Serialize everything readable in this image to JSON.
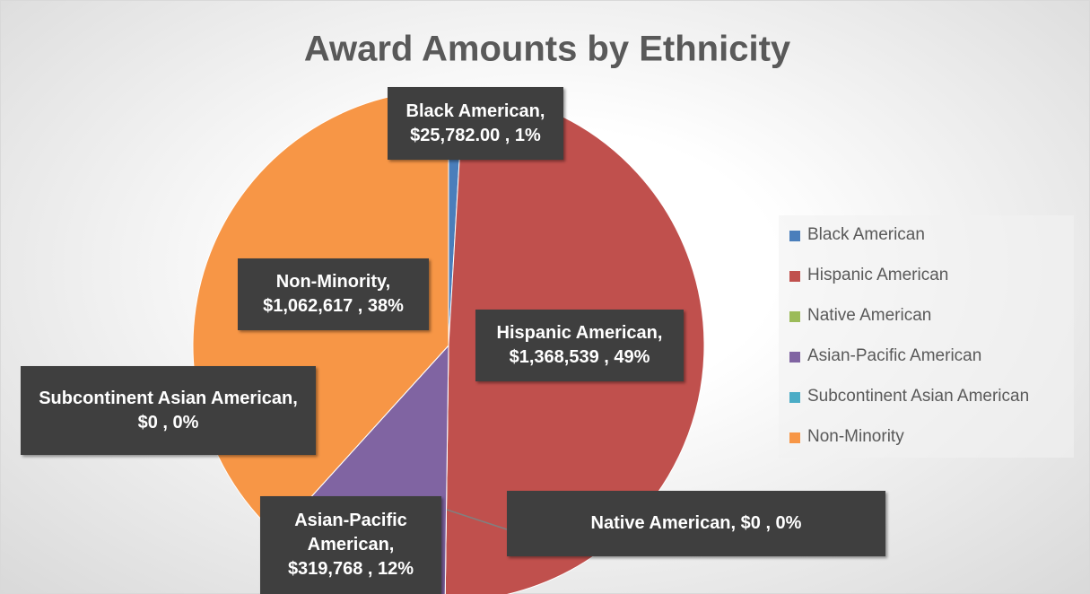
{
  "chart_data": {
    "type": "pie",
    "title": "Award Amounts by Ethnicity",
    "categories": [
      "Black American",
      "Hispanic American",
      "Native American",
      "Asian-Pacific American",
      "Subcontinent Asian American",
      "Non-Minority"
    ],
    "values": [
      25782,
      1368539,
      0,
      319768,
      0,
      1062617
    ],
    "value_labels": [
      "Black American, $25,782.00 , 1%",
      "Hispanic American, $1,368,539 , 49%",
      "Native American, $0 , 0%",
      "Asian-Pacific American, $319,768 , 12%",
      "Subcontinent Asian American, $0 , 0%",
      "Non-Minority, $1,062,617 , 38%"
    ],
    "colors": [
      "#4a7ebb",
      "#c0504d",
      "#9bbb59",
      "#8064a2",
      "#4bacc6",
      "#f79646"
    ],
    "legend": "right"
  }
}
